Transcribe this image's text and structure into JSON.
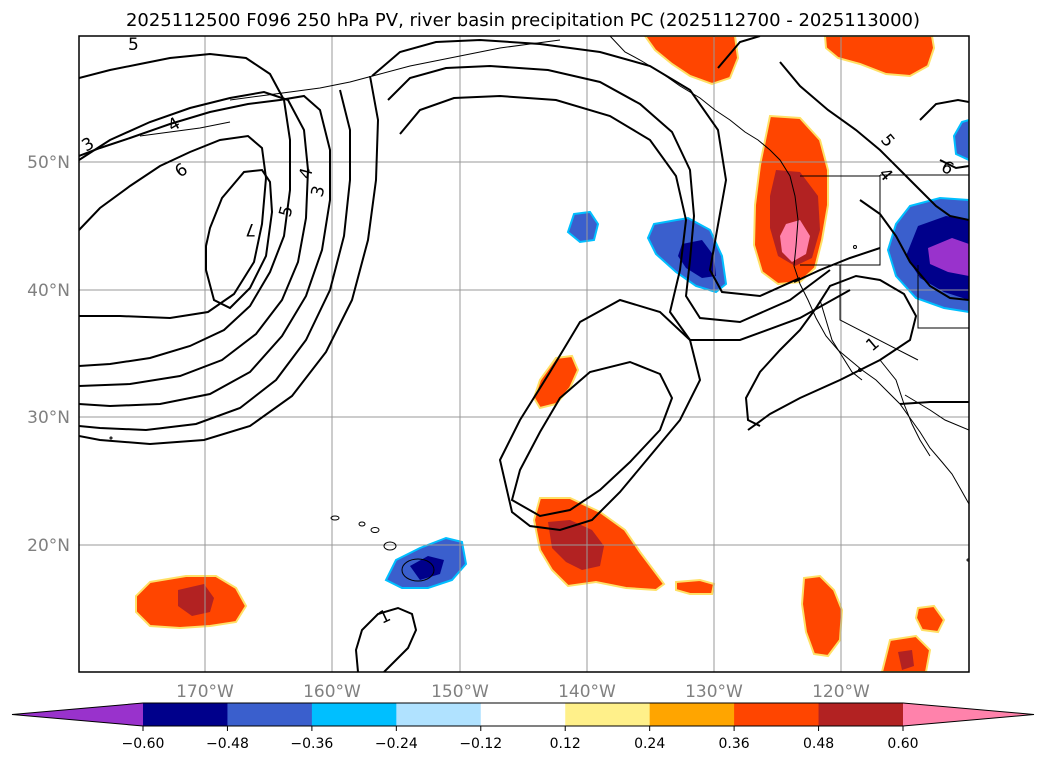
{
  "title": "2025112500 F096 250 hPa PV, river basin precipitation PC (2025112700 - 2025113000)",
  "lat_labels": [
    "50°N",
    "40°N",
    "30°N",
    "20°N"
  ],
  "lon_labels": [
    "170°W",
    "160°W",
    "150°W",
    "140°W",
    "130°W",
    "120°W"
  ],
  "map_extent": {
    "lon_min": -180,
    "lon_max": -110,
    "lat_min": 10,
    "lat_max": 60
  },
  "contour_labels": [
    "5",
    "4",
    "3",
    "6",
    "7",
    "5",
    "4",
    "3",
    "5",
    "4",
    "6",
    "1",
    "1"
  ],
  "colorbar": {
    "levels": [
      "−0.60",
      "−0.48",
      "−0.36",
      "−0.24",
      "−0.12",
      "0.12",
      "0.24",
      "0.36",
      "0.48",
      "0.60"
    ],
    "colors": [
      "#9932cc",
      "#00008b",
      "#3a5fcd",
      "#00bfff",
      "#b0e2ff",
      "#ffffff",
      "#fff08a",
      "#ffa500",
      "#ff4500",
      "#b22222",
      "#ff82ab"
    ]
  },
  "colors": {
    "neg_strong": "#00008b",
    "neg_mid": "#3a5fcd",
    "neg_light": "#00bfff",
    "pos_light": "#ffe066",
    "pos_mid": "#ff4500",
    "pos_strong": "#b22222",
    "pos_max": "#ff82ab",
    "extreme_neg": "#9932cc"
  }
}
